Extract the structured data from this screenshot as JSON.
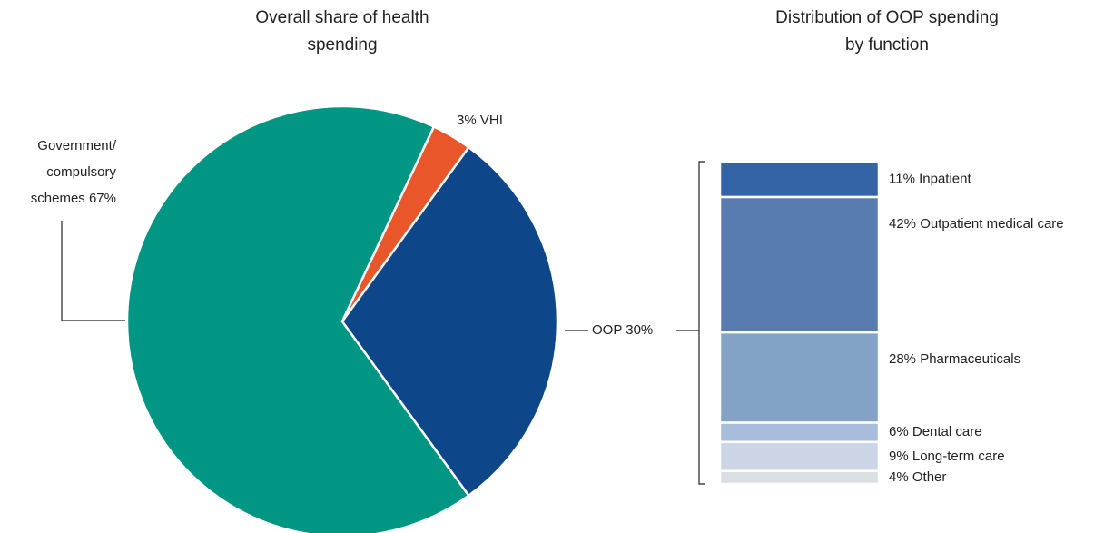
{
  "chart_data": [
    {
      "type": "pie",
      "title": "Overall share of health spending",
      "categories": [
        "Government/ compulsory schemes",
        "VHI",
        "OOP"
      ],
      "values": [
        67,
        3,
        30
      ],
      "value_labels": [
        "67%",
        "3%",
        "30%"
      ],
      "colors": [
        "#009684",
        "#e8562a",
        "#0d4689"
      ]
    },
    {
      "type": "stacked-bar",
      "title": "Distribution of OOP spending by function",
      "categories": [
        "Inpatient",
        "Outpatient medical care",
        "Pharmaceuticals",
        "Dental care",
        "Long-term care",
        "Other"
      ],
      "values": [
        11,
        42,
        28,
        6,
        9,
        4
      ],
      "value_labels": [
        "11%",
        "42%",
        "28%",
        "6%",
        "9%",
        "4%"
      ],
      "colors": [
        "#3464a6",
        "#587bb0",
        "#82a3c6",
        "#a7bddb",
        "#ccd5e6",
        "#d9dfe3"
      ]
    }
  ]
}
